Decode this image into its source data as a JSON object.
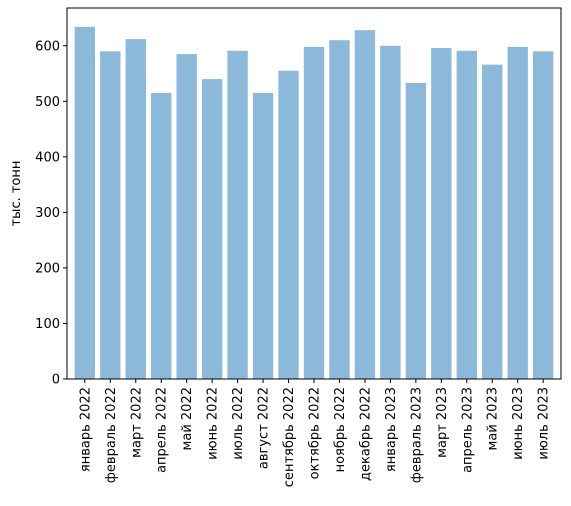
{
  "chart_data": {
    "type": "bar",
    "categories": [
      "январь 2022",
      "февраль 2022",
      "март 2022",
      "апрель 2022",
      "май 2022",
      "июнь 2022",
      "июль 2022",
      "август 2022",
      "сентябрь 2022",
      "октябрь 2022",
      "ноябрь 2022",
      "декабрь 2022",
      "январь 2023",
      "февраль 2023",
      "март 2023",
      "апрель 2023",
      "май 2023",
      "июнь 2023",
      "июль 2023"
    ],
    "values": [
      634,
      590,
      612,
      515,
      585,
      540,
      591,
      515,
      555,
      598,
      610,
      628,
      600,
      533,
      596,
      591,
      566,
      598,
      590
    ],
    "xlabel": "",
    "ylabel": "тыс. тонн",
    "ylim": [
      0,
      668
    ],
    "yticks": [
      0,
      100,
      200,
      300,
      400,
      500,
      600
    ],
    "bar_color": "#8cb8d9",
    "grid": false
  }
}
